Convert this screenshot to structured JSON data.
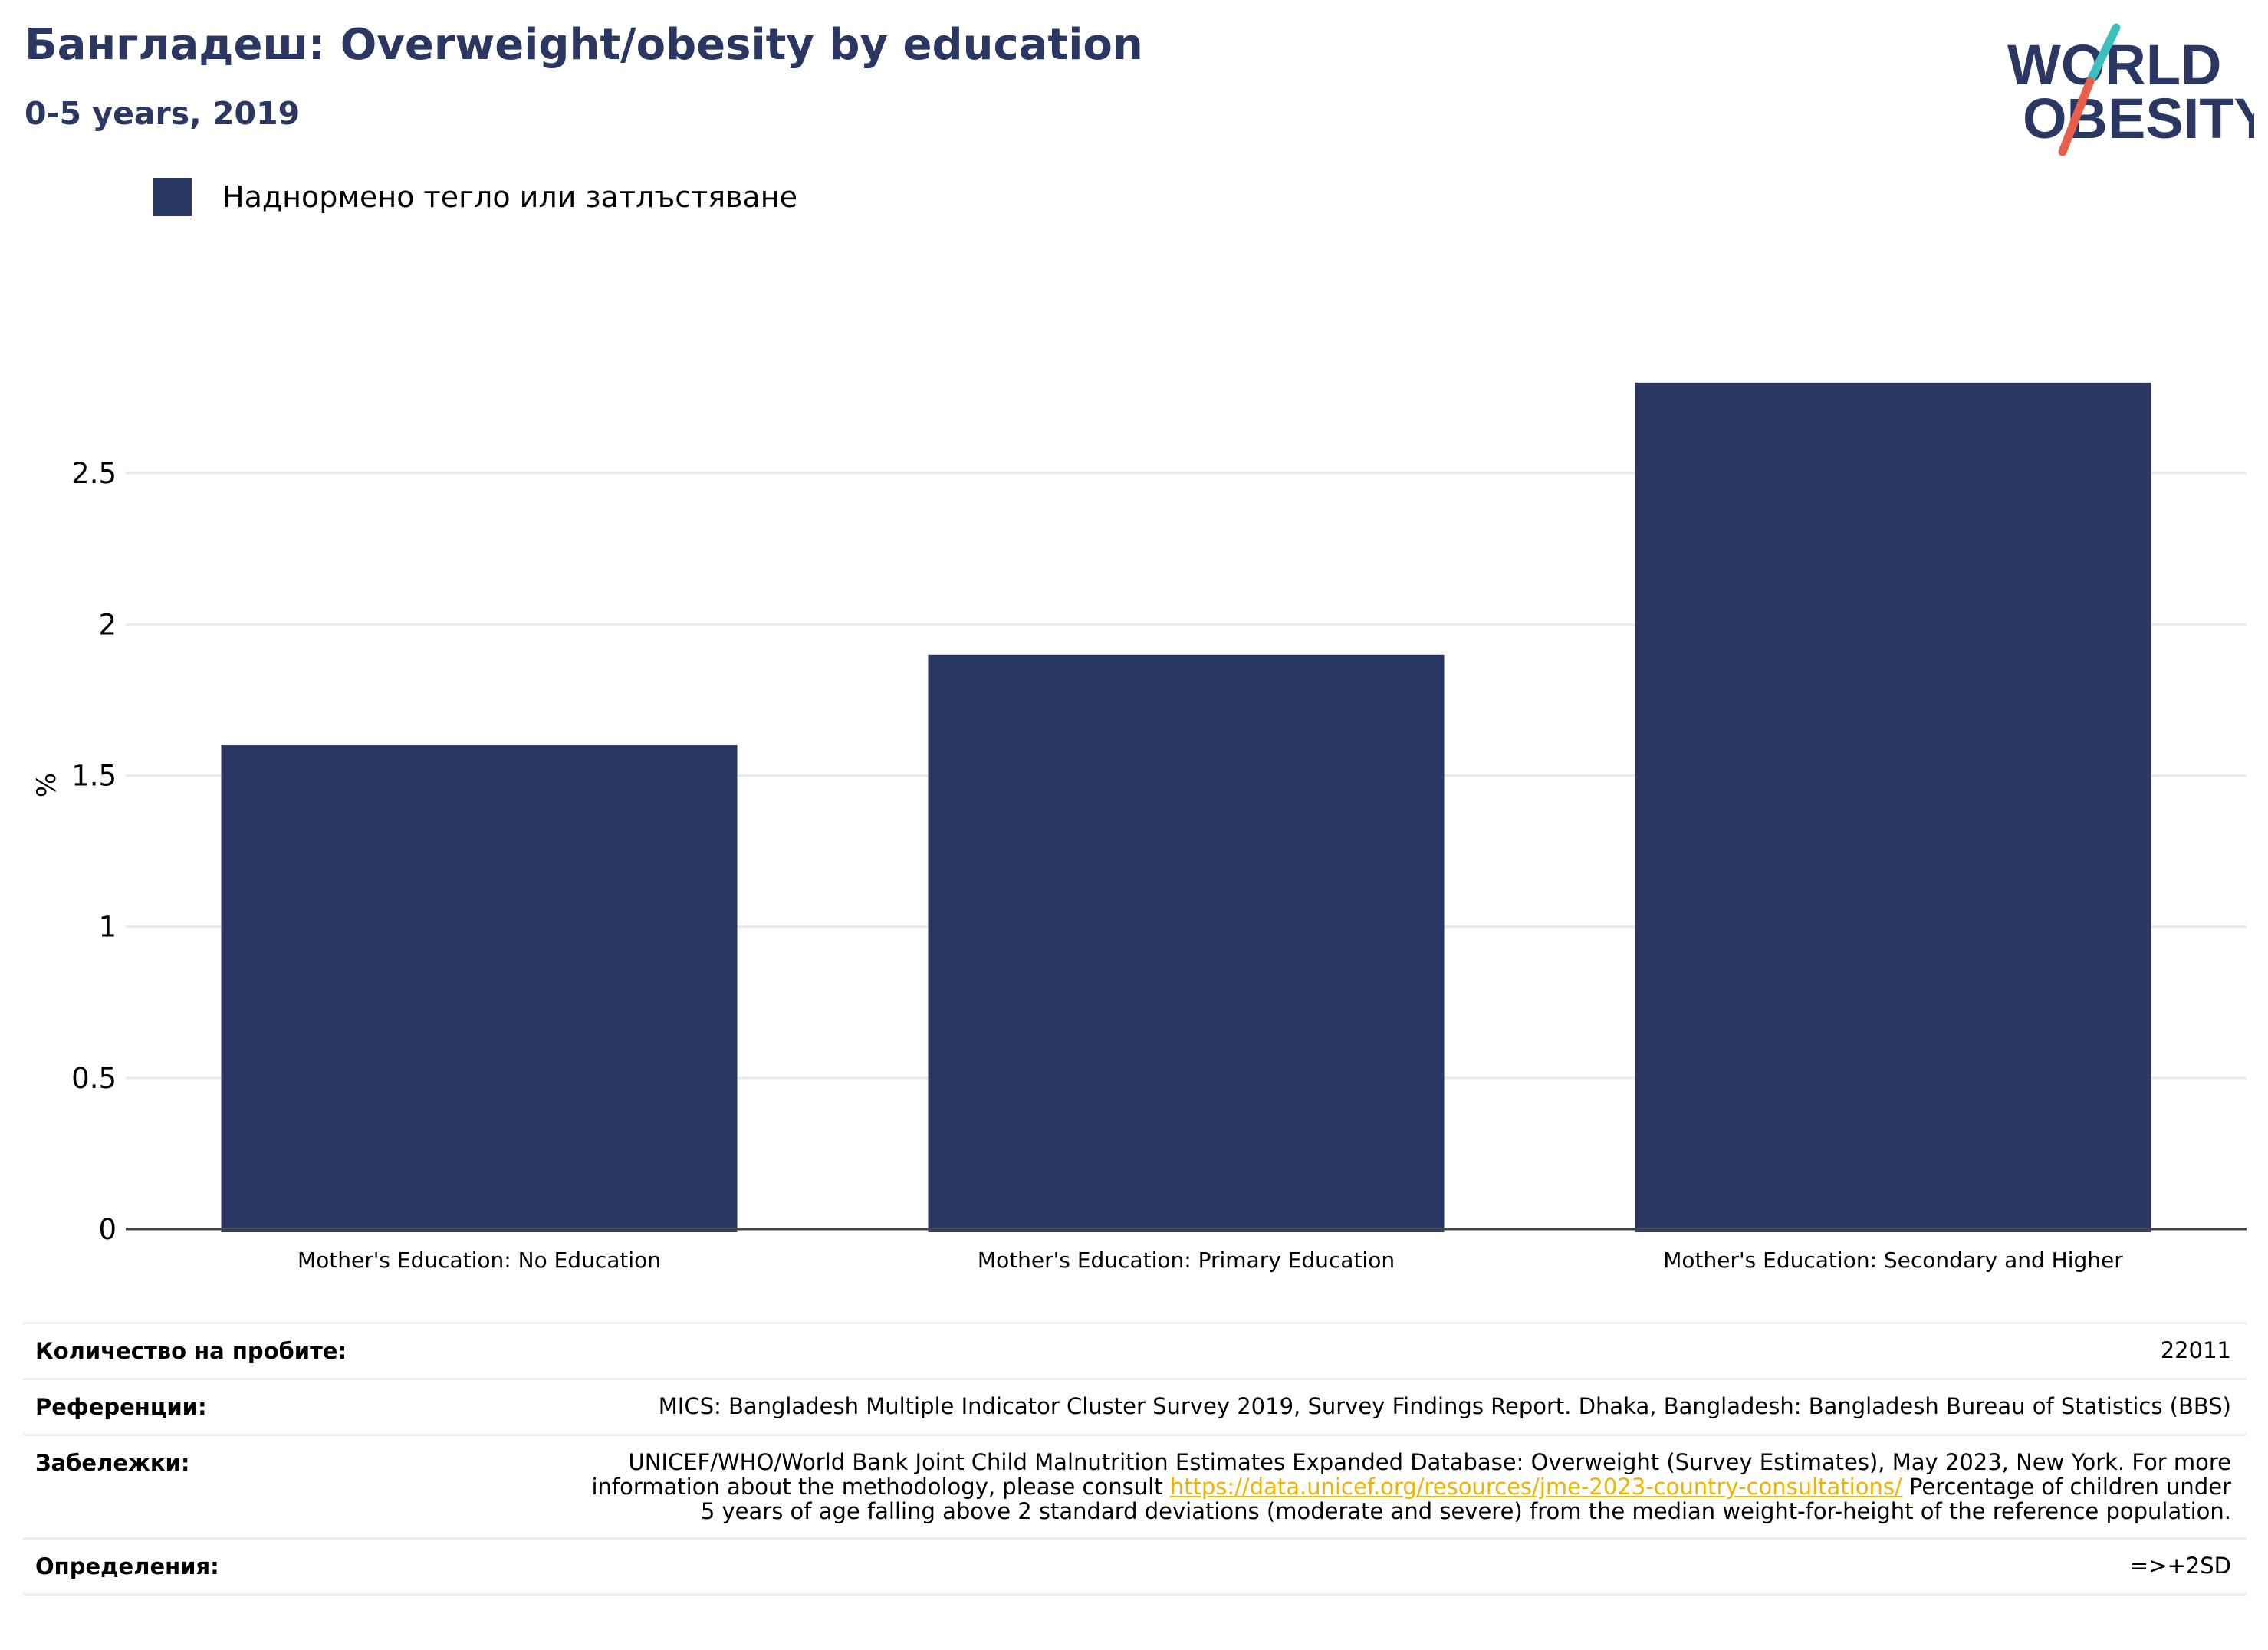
{
  "header": {
    "title": "Бангладеш: Overweight/obesity by education",
    "subtitle": "0-5 years, 2019"
  },
  "logo": {
    "line1": "WORLD",
    "line2": "OBESITY",
    "colors": {
      "text": "#2b3763",
      "slash_top": "#3bbfbf",
      "slash_bottom": "#e8604c"
    }
  },
  "legend": {
    "label": "Наднормено тегло или затлъстяване",
    "color": "#2b3763"
  },
  "chart_data": {
    "type": "bar",
    "categories": [
      "Mother's Education: No Education",
      "Mother's Education: Primary Education",
      "Mother's Education: Secondary and Higher"
    ],
    "series": [
      {
        "name": "Наднормено тегло или затлъстяване",
        "values": [
          1.6,
          1.9,
          2.8
        ],
        "color": "#2b3763"
      }
    ],
    "ylabel": "%",
    "xlabel": "",
    "ylim": [
      0,
      3.0
    ],
    "yticks": [
      0,
      0.5,
      1,
      1.5,
      2,
      2.5
    ],
    "ytick_labels": [
      "0",
      "0.5",
      "1",
      "1.5",
      "2",
      "2.5"
    ],
    "grid": true,
    "legend_position": "top-left"
  },
  "info": {
    "sample_label": "Количество на пробите:",
    "sample_value": "22011",
    "references_label": "Референции:",
    "references_value": "MICS: Bangladesh Multiple Indicator Cluster Survey 2019, Survey Findings Report. Dhaka, Bangladesh: Bangladesh Bureau of Statistics (BBS)",
    "notes_label": "Забележки:",
    "notes_before": "UNICEF/WHO/World Bank Joint Child Malnutrition Estimates Expanded Database: Overweight (Survey Estimates), May 2023, New York. For more information about the methodology, please consult ",
    "notes_link": "https://data.unicef.org/resources/jme-2023-country-consultations/",
    "notes_after": " Percentage of children under 5 years of age falling above 2 standard deviations (moderate and severe) from the median weight-for-height of the reference population.",
    "definitions_label": "Определения:",
    "definitions_value": "=>+2SD"
  }
}
